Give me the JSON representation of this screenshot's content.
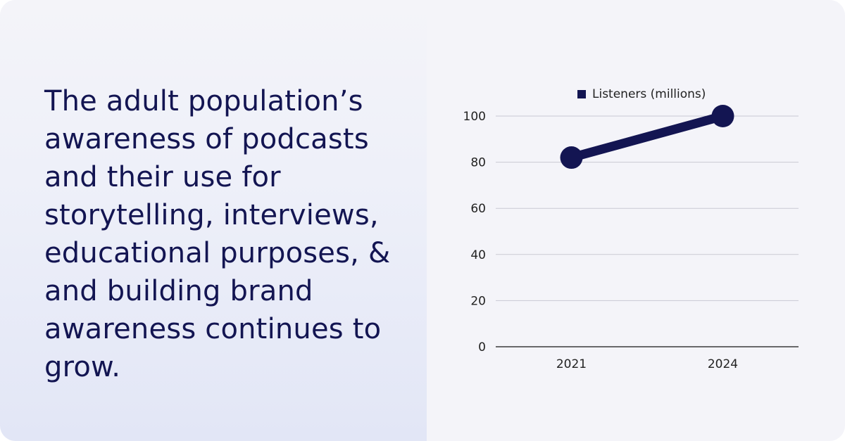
{
  "headline": "The adult population’s awareness of podcasts and their use for storytelling, interviews, educational purposes, & and building brand awareness continues to grow.",
  "colors": {
    "text": "#131552",
    "series": "#131552",
    "grid": "#c9c9d3",
    "axis": "#3a3a3a",
    "background": "#f4f4f9"
  },
  "chart_data": {
    "type": "line",
    "categories": [
      "2021",
      "2024"
    ],
    "series": [
      {
        "name": "Listeners (millions)",
        "values": [
          82,
          100
        ]
      }
    ],
    "title": "",
    "xlabel": "",
    "ylabel": "",
    "ylim": [
      0,
      100
    ],
    "yticks": [
      0,
      20,
      40,
      60,
      80,
      100
    ],
    "grid": true,
    "legend_position": "top-center"
  }
}
